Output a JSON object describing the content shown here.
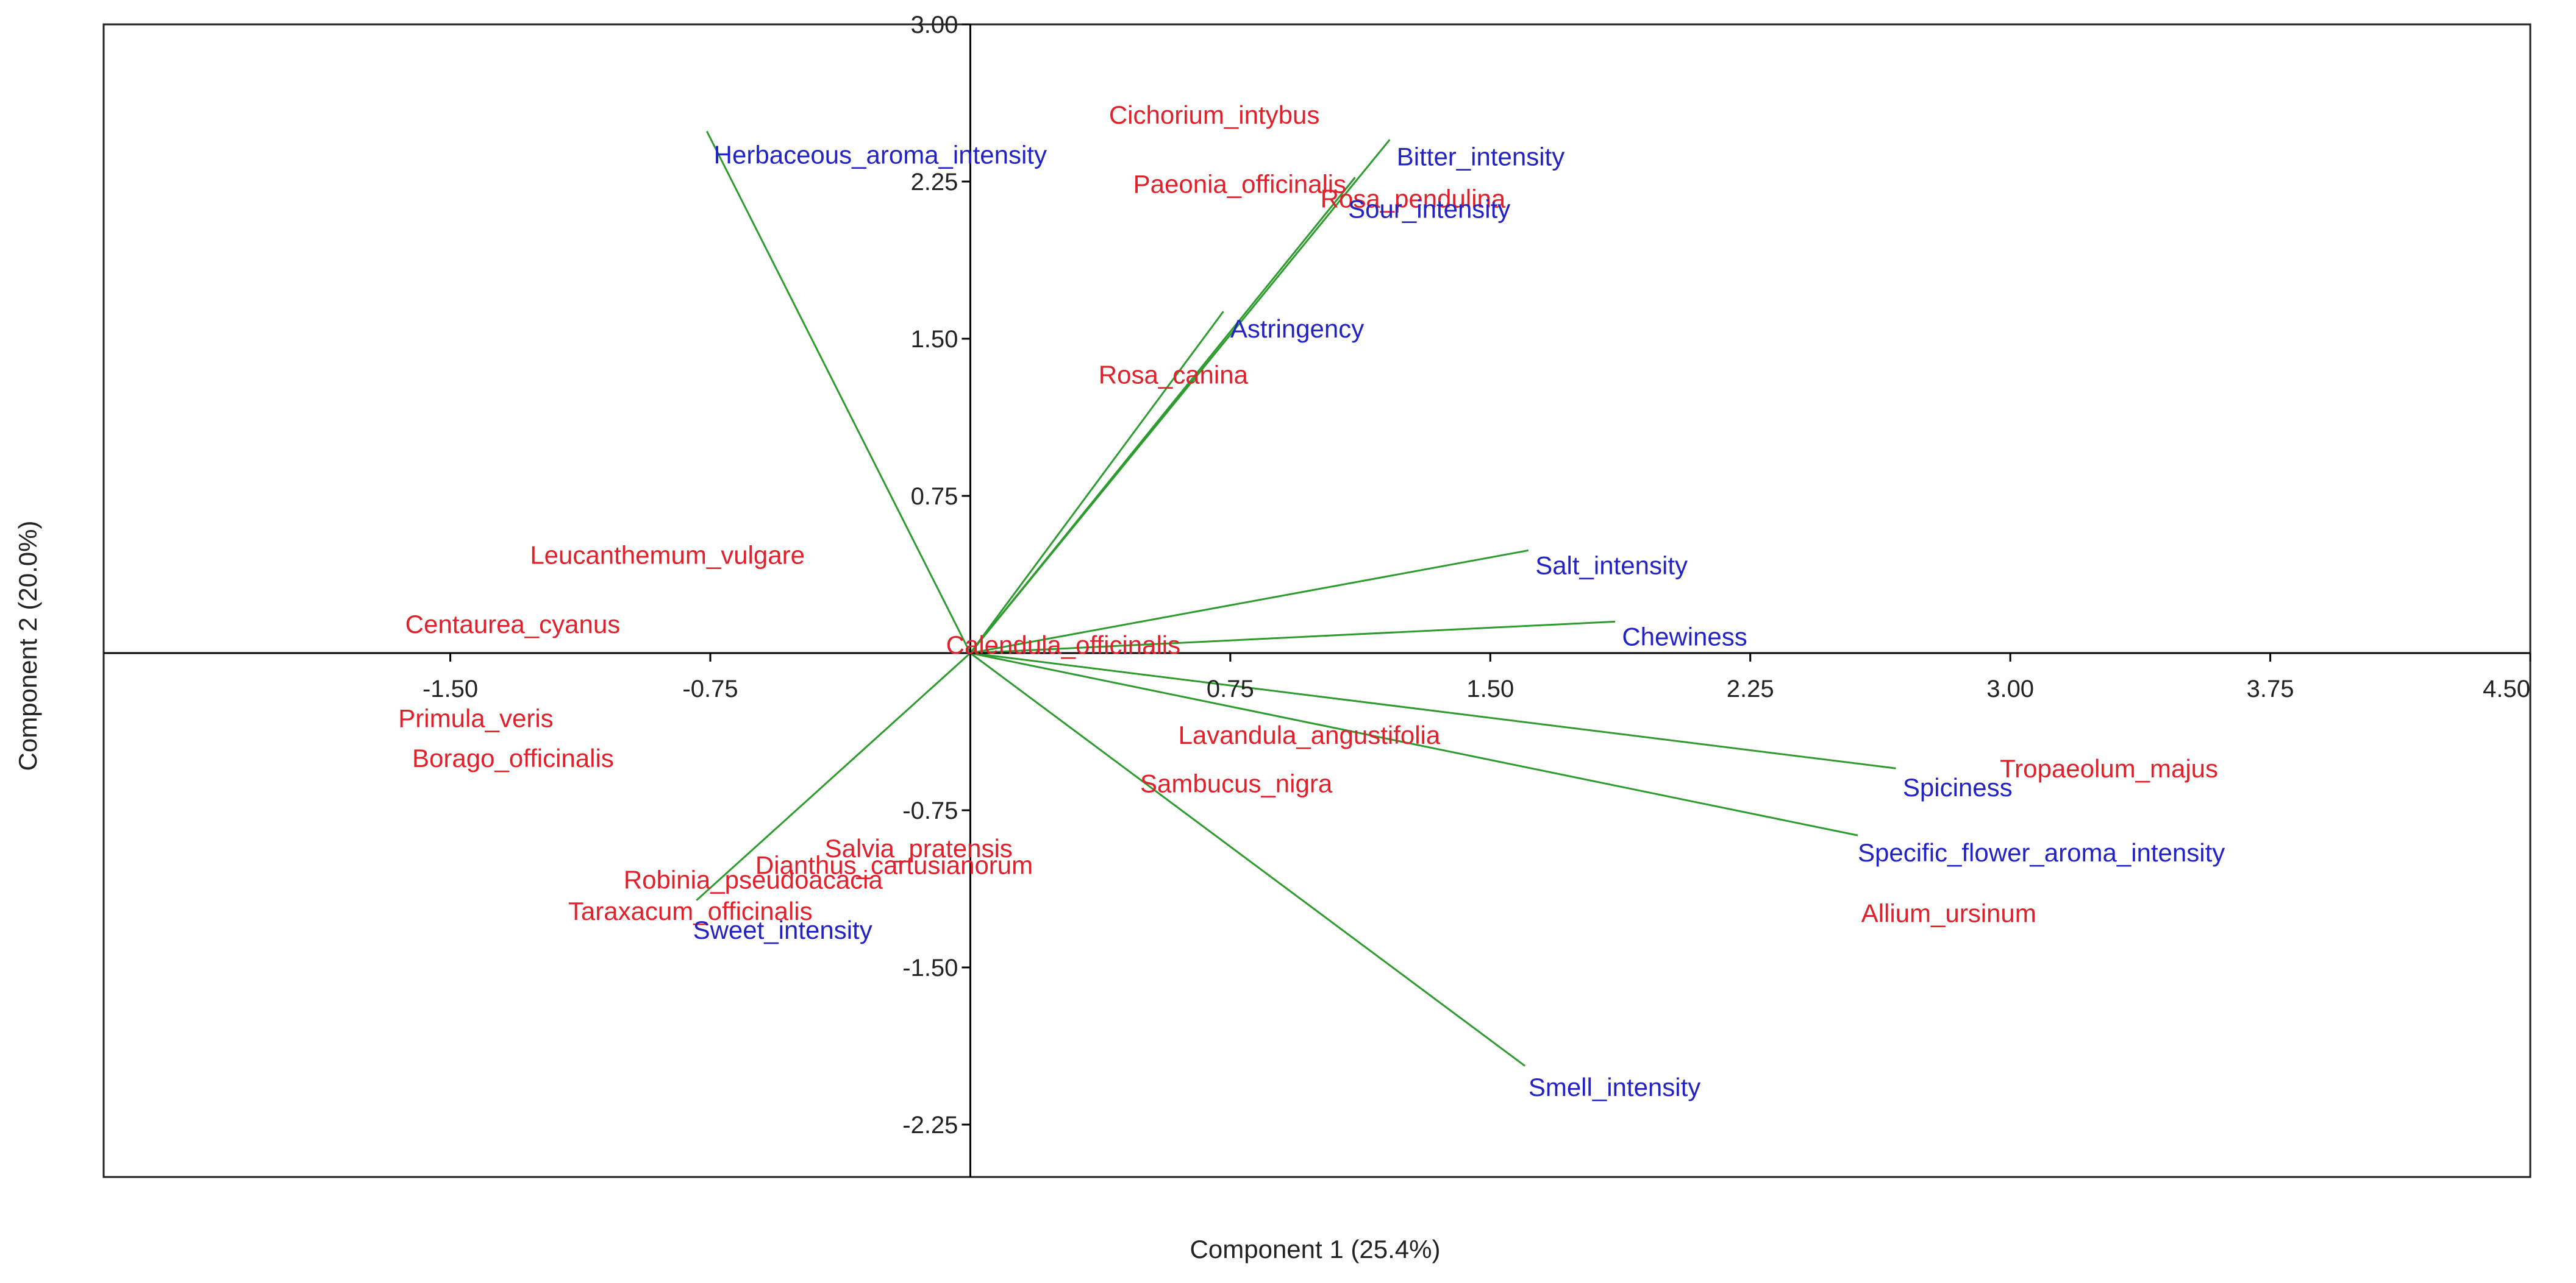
{
  "chart_data": {
    "type": "scatter",
    "subtype": "pca-biplot",
    "title": "",
    "xlabel": "Component 1 (25.4%)",
    "ylabel": "Component 2 (20.0%)",
    "xlim": [
      -2.5,
      4.5
    ],
    "ylim": [
      -2.5,
      3.0
    ],
    "x_ticks": [
      -1.5,
      -0.75,
      0.75,
      1.5,
      2.25,
      3.0,
      3.75,
      4.5
    ],
    "x_tick_labels": [
      "-1.50",
      "-0.75",
      "0.75",
      "1.50",
      "2.25",
      "3.00",
      "3.75",
      "4.50"
    ],
    "y_ticks": [
      3.0,
      2.25,
      1.5,
      0.75,
      -0.75,
      -1.5,
      -2.25
    ],
    "y_tick_labels": [
      "3.00",
      "2.25",
      "1.50",
      "0.75",
      "-0.75",
      "-1.50",
      "-2.25"
    ],
    "grid": false,
    "colors": {
      "observation": "#e0202a",
      "variable": "#2323c4",
      "loading_line": "#2e9b2e",
      "axis": "#000000",
      "frame": "#222222"
    },
    "observations": [
      {
        "name": "Cichorium_intybus",
        "x": 0.4,
        "y": 2.57
      },
      {
        "name": "Paeonia_officinalis",
        "x": 0.47,
        "y": 2.24
      },
      {
        "name": "Rosa_pendulina",
        "x": 1.01,
        "y": 2.17
      },
      {
        "name": "Rosa_canina",
        "x": 0.37,
        "y": 1.33
      },
      {
        "name": "Leucanthemum_vulgare",
        "x": -1.27,
        "y": 0.47
      },
      {
        "name": "Centaurea_cyanus",
        "x": -1.63,
        "y": 0.14
      },
      {
        "name": "Calendula_officinalis",
        "x": -0.07,
        "y": 0.04
      },
      {
        "name": "Primula_veris",
        "x": -1.65,
        "y": -0.31
      },
      {
        "name": "Borago_officinalis",
        "x": -1.61,
        "y": -0.5
      },
      {
        "name": "Lavandula_angustifolia",
        "x": 0.6,
        "y": -0.39
      },
      {
        "name": "Sambucus_nigra",
        "x": 0.49,
        "y": -0.62
      },
      {
        "name": "Salvia_pratensis",
        "x": -0.42,
        "y": -0.93
      },
      {
        "name": "Dianthus_cartusianorum",
        "x": -0.62,
        "y": -1.01
      },
      {
        "name": "Robinia_pseudoacacia",
        "x": -1.0,
        "y": -1.08
      },
      {
        "name": "Taraxacum_officinalis",
        "x": -1.16,
        "y": -1.23
      },
      {
        "name": "Tropaeolum_majus",
        "x": 2.97,
        "y": -0.55
      },
      {
        "name": "Allium_ursinum",
        "x": 2.57,
        "y": -1.24
      }
    ],
    "variables": [
      {
        "name": "Herbaceous_aroma_intensity",
        "x": -0.76,
        "y": 2.49,
        "label_x": -0.74,
        "label_y": 2.38
      },
      {
        "name": "Bitter_intensity",
        "x": 1.21,
        "y": 2.45,
        "label_x": 1.23,
        "label_y": 2.37
      },
      {
        "name": "Sour_intensity",
        "x": 1.11,
        "y": 2.27,
        "label_x": 1.09,
        "label_y": 2.12
      },
      {
        "name": "Astringency",
        "x": 0.73,
        "y": 1.63,
        "label_x": 0.75,
        "label_y": 1.55
      },
      {
        "name": "Salt_intensity",
        "x": 1.61,
        "y": 0.49,
        "label_x": 1.63,
        "label_y": 0.42
      },
      {
        "name": "Chewiness",
        "x": 1.86,
        "y": 0.15,
        "label_x": 1.88,
        "label_y": 0.08
      },
      {
        "name": "Spiciness",
        "x": 2.67,
        "y": -0.55,
        "label_x": 2.69,
        "label_y": -0.64
      },
      {
        "name": "Specific_flower_aroma_intensity",
        "x": 2.56,
        "y": -0.87,
        "label_x": 2.56,
        "label_y": -0.95
      },
      {
        "name": "Smell_intensity",
        "x": 1.6,
        "y": -1.97,
        "label_x": 1.61,
        "label_y": -2.07
      },
      {
        "name": "Sweet_intensity",
        "x": -0.79,
        "y": -1.18,
        "label_x": -0.8,
        "label_y": -1.32
      }
    ]
  }
}
